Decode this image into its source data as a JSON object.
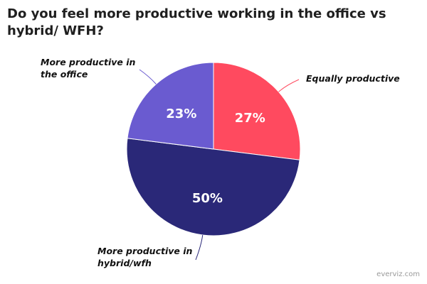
{
  "chart_data": {
    "type": "pie",
    "title": "Do you feel more productive working in the office vs hybrid/ WFH?",
    "categories": [
      "Equally productive",
      "More productive in hybrid/wfh",
      "More productive in the office"
    ],
    "values": [
      27,
      50,
      23
    ],
    "unit": "%",
    "slice_labels": [
      "27%",
      "50%",
      "23%"
    ],
    "colors": [
      "#ff4a5f",
      "#2a2878",
      "#6a5bd0"
    ],
    "legend": "none"
  },
  "credit": "everviz.com"
}
